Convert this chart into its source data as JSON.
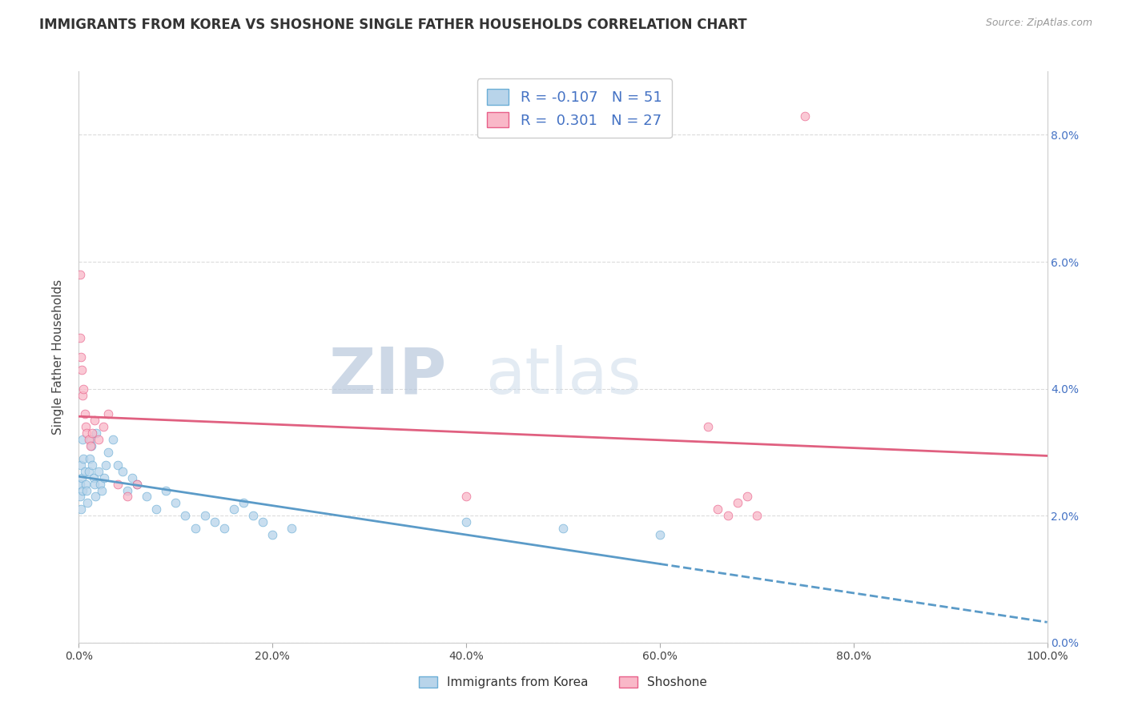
{
  "title": "IMMIGRANTS FROM KOREA VS SHOSHONE SINGLE FATHER HOUSEHOLDS CORRELATION CHART",
  "source": "Source: ZipAtlas.com",
  "ylabel": "Single Father Households",
  "legend_label1": "Immigrants from Korea",
  "legend_label2": "Shoshone",
  "legend_r1": "-0.107",
  "legend_n1": "51",
  "legend_r2": "0.301",
  "legend_n2": "27",
  "color_korea_fill": "#b8d4ea",
  "color_korea_edge": "#6baed6",
  "color_shoshone_fill": "#f9b8c8",
  "color_shoshone_edge": "#e8608a",
  "color_line_korea": "#5b9bc8",
  "color_line_shoshone": "#e06080",
  "watermark_zip": "ZIP",
  "watermark_atlas": "atlas",
  "watermark_color": "#c8d4e8",
  "korea_x": [
    0.1,
    0.15,
    0.2,
    0.25,
    0.3,
    0.35,
    0.4,
    0.5,
    0.6,
    0.7,
    0.8,
    0.9,
    1.0,
    1.1,
    1.2,
    1.3,
    1.4,
    1.5,
    1.6,
    1.7,
    1.8,
    2.0,
    2.2,
    2.4,
    2.6,
    2.8,
    3.0,
    3.5,
    4.0,
    4.5,
    5.0,
    5.5,
    6.0,
    7.0,
    8.0,
    9.0,
    10.0,
    11.0,
    12.0,
    13.0,
    14.0,
    15.0,
    16.0,
    17.0,
    18.0,
    19.0,
    20.0,
    22.0,
    40.0,
    50.0,
    60.0
  ],
  "korea_y": [
    2.5,
    2.3,
    2.1,
    2.8,
    2.6,
    2.4,
    3.2,
    2.9,
    2.7,
    2.5,
    2.4,
    2.2,
    2.7,
    2.9,
    3.2,
    3.1,
    2.8,
    2.6,
    2.5,
    2.3,
    3.3,
    2.7,
    2.5,
    2.4,
    2.6,
    2.8,
    3.0,
    3.2,
    2.8,
    2.7,
    2.4,
    2.6,
    2.5,
    2.3,
    2.1,
    2.4,
    2.2,
    2.0,
    1.8,
    2.0,
    1.9,
    1.8,
    2.1,
    2.2,
    2.0,
    1.9,
    1.7,
    1.8,
    1.9,
    1.8,
    1.7
  ],
  "shoshone_x": [
    0.1,
    0.15,
    0.2,
    0.3,
    0.4,
    0.5,
    0.6,
    0.7,
    0.8,
    1.0,
    1.2,
    1.4,
    1.6,
    2.0,
    2.5,
    3.0,
    4.0,
    5.0,
    6.0,
    40.0,
    65.0,
    66.0,
    67.0,
    68.0,
    69.0,
    70.0,
    75.0
  ],
  "shoshone_y": [
    5.8,
    4.8,
    4.5,
    4.3,
    3.9,
    4.0,
    3.6,
    3.4,
    3.3,
    3.2,
    3.1,
    3.3,
    3.5,
    3.2,
    3.4,
    3.6,
    2.5,
    2.3,
    2.5,
    2.3,
    3.4,
    2.1,
    2.0,
    2.2,
    2.3,
    2.0,
    8.3
  ],
  "xlim": [
    0,
    100
  ],
  "ylim": [
    0,
    9.0
  ],
  "xticks": [
    0,
    20,
    40,
    60,
    80,
    100
  ],
  "xtick_labels": [
    "0.0%",
    "20.0%",
    "40.0%",
    "60.0%",
    "80.0%",
    "100.0%"
  ],
  "yticks_right": [
    0,
    2,
    4,
    6,
    8
  ],
  "ytick_right_labels": [
    "0.0%",
    "2.0%",
    "4.0%",
    "6.0%",
    "8.0%"
  ],
  "grid_color": "#d8d8d8",
  "bg_color": "#ffffff",
  "title_fontsize": 12,
  "marker_size": 60
}
